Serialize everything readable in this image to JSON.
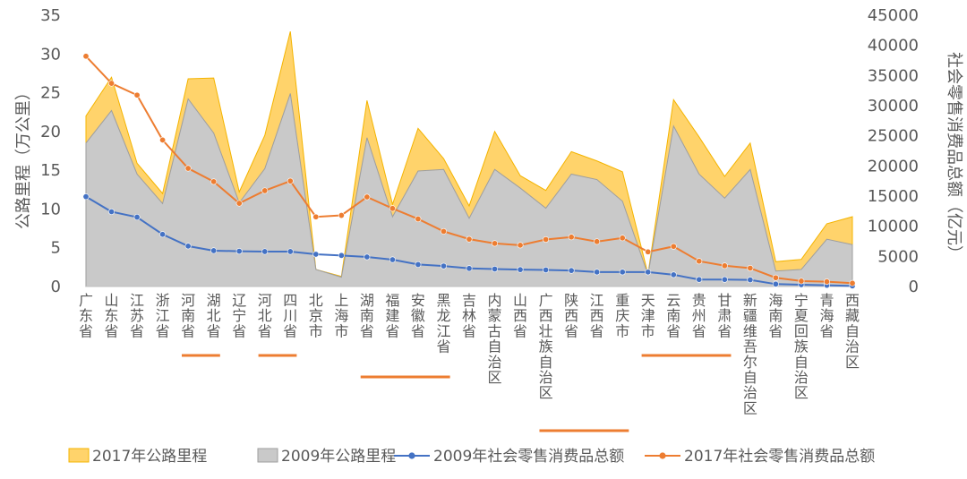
{
  "chart_data": {
    "type": "area",
    "title": "",
    "categories": [
      "广东省",
      "山东省",
      "江苏省",
      "浙江省",
      "河南省",
      "湖北省",
      "辽宁省",
      "河北省",
      "四川省",
      "北京市",
      "上海市",
      "湖南省",
      "福建省",
      "安徽省",
      "黑龙江省",
      "吉林省",
      "内蒙古自治区",
      "山西省",
      "广西壮族自治区",
      "陕西省",
      "江西省",
      "重庆市",
      "天津市",
      "云南省",
      "贵州省",
      "甘肃省",
      "新疆维吾尔自治区",
      "海南省",
      "宁夏回族自治区",
      "青海省",
      "西藏自治区"
    ],
    "ylabel_left": "公路里程（万公里）",
    "ylabel_right": "社会零售消费品总额（亿元）",
    "y_left_ticks": [
      "0",
      "5",
      "10",
      "15",
      "20",
      "25",
      "30",
      "35"
    ],
    "y_right_ticks": [
      "0",
      "5000",
      "10000",
      "15000",
      "20000",
      "25000",
      "30000",
      "35000",
      "40000",
      "45000"
    ],
    "ylim_left": [
      0,
      35
    ],
    "ylim_right": [
      0,
      45000
    ],
    "grid": false,
    "legend_position": "bottom",
    "series": [
      {
        "name": "2017年公路里程",
        "kind": "area",
        "axis": "left",
        "color": "#FFD36B",
        "values": [
          22.0,
          27.0,
          15.9,
          12.0,
          26.8,
          26.9,
          12.2,
          19.5,
          32.9,
          2.2,
          1.3,
          24.0,
          10.6,
          20.4,
          16.5,
          10.4,
          20.0,
          14.3,
          12.4,
          17.4,
          16.2,
          14.8,
          1.6,
          24.1,
          19.3,
          14.2,
          18.5,
          3.2,
          3.5,
          8.1,
          9.0
        ]
      },
      {
        "name": "2009年公路里程",
        "kind": "area",
        "axis": "left",
        "color": "#C9C9C9",
        "values": [
          18.5,
          22.7,
          14.5,
          10.7,
          24.2,
          19.8,
          10.8,
          15.2,
          24.9,
          2.2,
          1.2,
          19.2,
          9.0,
          14.9,
          15.1,
          8.8,
          15.1,
          12.7,
          10.1,
          14.5,
          13.8,
          11.0,
          1.5,
          20.7,
          14.5,
          11.4,
          15.1,
          2.0,
          2.2,
          6.1,
          5.4
        ]
      },
      {
        "name": "2009年社会零售消费品总额",
        "kind": "line",
        "axis": "right",
        "color": "#4472C4",
        "values": [
          14900,
          12400,
          11500,
          8650,
          6700,
          5950,
          5850,
          5800,
          5800,
          5350,
          5150,
          4900,
          4450,
          3650,
          3400,
          3000,
          2900,
          2800,
          2750,
          2650,
          2400,
          2400,
          2400,
          1950,
          1150,
          1150,
          1100,
          400,
          300,
          200,
          100
        ]
      },
      {
        "name": "2017年社会零售消费品总额",
        "kind": "line",
        "axis": "right",
        "color": "#ED7D31",
        "values": [
          38200,
          33700,
          31750,
          24300,
          19600,
          17400,
          13800,
          15900,
          17500,
          11550,
          11800,
          14850,
          12950,
          11200,
          9150,
          7850,
          7150,
          6850,
          7800,
          8200,
          7450,
          8050,
          5750,
          6650,
          4200,
          3450,
          3050,
          1450,
          900,
          800,
          550
        ]
      }
    ],
    "underline_marks": [
      {
        "from": 4,
        "to": 5,
        "color": "#ED7D31"
      },
      {
        "from": 7,
        "to": 8,
        "color": "#ED7D31"
      },
      {
        "from": 11,
        "to": 14,
        "color": "#ED7D31"
      },
      {
        "from": 18,
        "to": 21,
        "color": "#ED7D31"
      },
      {
        "from": 22,
        "to": 25,
        "color": "#ED7D31"
      }
    ]
  }
}
